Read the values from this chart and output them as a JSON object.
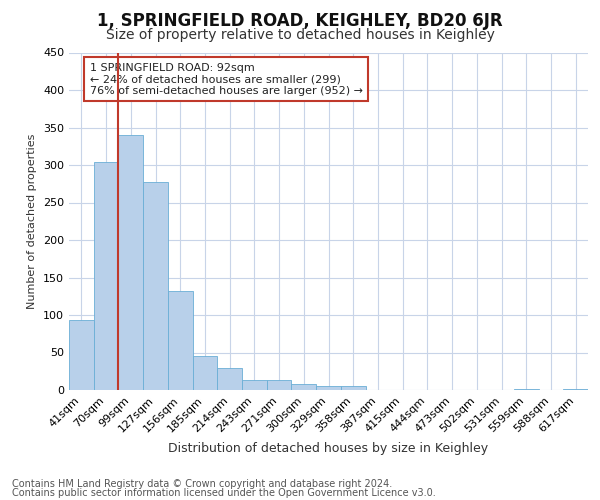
{
  "title": "1, SPRINGFIELD ROAD, KEIGHLEY, BD20 6JR",
  "subtitle": "Size of property relative to detached houses in Keighley",
  "xlabel": "Distribution of detached houses by size in Keighley",
  "ylabel": "Number of detached properties",
  "categories": [
    "41sqm",
    "70sqm",
    "99sqm",
    "127sqm",
    "156sqm",
    "185sqm",
    "214sqm",
    "243sqm",
    "271sqm",
    "300sqm",
    "329sqm",
    "358sqm",
    "387sqm",
    "415sqm",
    "444sqm",
    "473sqm",
    "502sqm",
    "531sqm",
    "559sqm",
    "588sqm",
    "617sqm"
  ],
  "values": [
    93,
    304,
    340,
    277,
    132,
    46,
    30,
    13,
    13,
    8,
    5,
    5,
    0,
    0,
    0,
    0,
    0,
    0,
    2,
    0,
    2
  ],
  "bar_color": "#b8d0ea",
  "bar_edge_color": "#6aaed6",
  "vline_color": "#c0392b",
  "annotation_title": "1 SPRINGFIELD ROAD: 92sqm",
  "annotation_line1": "← 24% of detached houses are smaller (299)",
  "annotation_line2": "76% of semi-detached houses are larger (952) →",
  "annotation_box_color": "#ffffff",
  "annotation_box_edge": "#c0392b",
  "ylim": [
    0,
    450
  ],
  "yticks": [
    0,
    50,
    100,
    150,
    200,
    250,
    300,
    350,
    400,
    450
  ],
  "footer1": "Contains HM Land Registry data © Crown copyright and database right 2024.",
  "footer2": "Contains public sector information licensed under the Open Government Licence v3.0.",
  "bg_color": "#ffffff",
  "grid_color": "#c8d4e8",
  "title_fontsize": 12,
  "subtitle_fontsize": 10,
  "xlabel_fontsize": 9,
  "ylabel_fontsize": 8,
  "tick_fontsize": 8,
  "footer_fontsize": 7
}
